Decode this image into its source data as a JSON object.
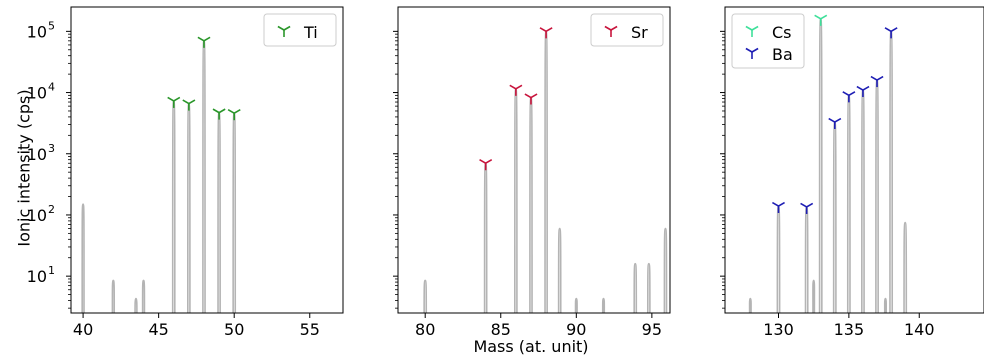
{
  "figure": {
    "ylabel": "Ionic intensity (cps)",
    "xlabel": "Mass (at. unit)"
  },
  "chart_data": [
    {
      "type": "line",
      "panel": "Ti",
      "yscale": "log",
      "xlim": [
        39.2,
        57.2
      ],
      "ylim": [
        2.5,
        250000
      ],
      "xticks": [
        40,
        45,
        50,
        55
      ],
      "yticks": [
        {
          "value": 10,
          "label": "10",
          "exp": "1"
        },
        {
          "value": 100,
          "label": "10",
          "exp": "2"
        },
        {
          "value": 1000,
          "label": "10",
          "exp": "3"
        },
        {
          "value": 10000,
          "label": "10",
          "exp": "4"
        },
        {
          "value": 100000,
          "label": "10",
          "exp": "5"
        }
      ],
      "spectrum_peaks": [
        [
          40,
          150,
          0.06
        ],
        [
          42,
          8.5,
          0.06
        ],
        [
          43.5,
          4.3,
          0.06
        ],
        [
          44,
          8.5,
          0.06
        ],
        [
          46,
          7300,
          0.07
        ],
        [
          47,
          6600,
          0.07
        ],
        [
          48,
          70000,
          0.07
        ],
        [
          49,
          4700,
          0.07
        ],
        [
          50,
          4600,
          0.07
        ]
      ],
      "legend_position": "top-right",
      "series": [
        {
          "name": "Ti",
          "color": "#2a962a",
          "x": [
            46,
            47,
            48,
            49,
            50
          ],
          "y": [
            7300,
            6600,
            70000,
            4700,
            4600
          ]
        }
      ]
    },
    {
      "type": "line",
      "panel": "Sr",
      "yscale": "log",
      "xlim": [
        78.2,
        96.2
      ],
      "ylim": [
        2.5,
        250000
      ],
      "xticks": [
        80,
        85,
        90,
        95
      ],
      "yticks": [],
      "spectrum_peaks": [
        [
          80,
          8.5,
          0.07
        ],
        [
          84,
          700,
          0.07
        ],
        [
          86,
          11500,
          0.07
        ],
        [
          87,
          8300,
          0.07
        ],
        [
          88,
          100000,
          0.07
        ],
        [
          88.9,
          60,
          0.07
        ],
        [
          90,
          4.3,
          0.05
        ],
        [
          91.8,
          4.3,
          0.05
        ],
        [
          93.9,
          16,
          0.07
        ],
        [
          94.8,
          16,
          0.07
        ],
        [
          95.9,
          60,
          0.07
        ]
      ],
      "legend_position": "top-right",
      "series": [
        {
          "name": "Sr",
          "color": "#c8143c",
          "x": [
            84,
            86,
            87,
            88
          ],
          "y": [
            700,
            11500,
            8300,
            100000
          ]
        }
      ]
    },
    {
      "type": "line",
      "panel": "Cs Ba",
      "yscale": "log",
      "xlim": [
        126.2,
        144.6
      ],
      "ylim": [
        2.5,
        250000
      ],
      "xticks": [
        130,
        135,
        140
      ],
      "yticks": [],
      "spectrum_peaks": [
        [
          128,
          4.3,
          0.05
        ],
        [
          130,
          140,
          0.08
        ],
        [
          132,
          135,
          0.08
        ],
        [
          132.5,
          8.5,
          0.05
        ],
        [
          133,
          160000,
          0.08
        ],
        [
          134,
          3300,
          0.08
        ],
        [
          135,
          9000,
          0.08
        ],
        [
          136,
          11000,
          0.08
        ],
        [
          137,
          16000,
          0.08
        ],
        [
          137.6,
          4.3,
          0.05
        ],
        [
          138,
          100000,
          0.08
        ],
        [
          139,
          75,
          0.08
        ]
      ],
      "legend_position": "top-left",
      "series": [
        {
          "name": "Cs",
          "color": "#3ee09a",
          "x": [
            133
          ],
          "y": [
            160000
          ]
        },
        {
          "name": "Ba",
          "color": "#1e1eb4",
          "x": [
            130,
            132,
            134,
            135,
            136,
            137,
            138
          ],
          "y": [
            140,
            135,
            3300,
            9000,
            11000,
            16000,
            100000
          ]
        }
      ]
    }
  ]
}
